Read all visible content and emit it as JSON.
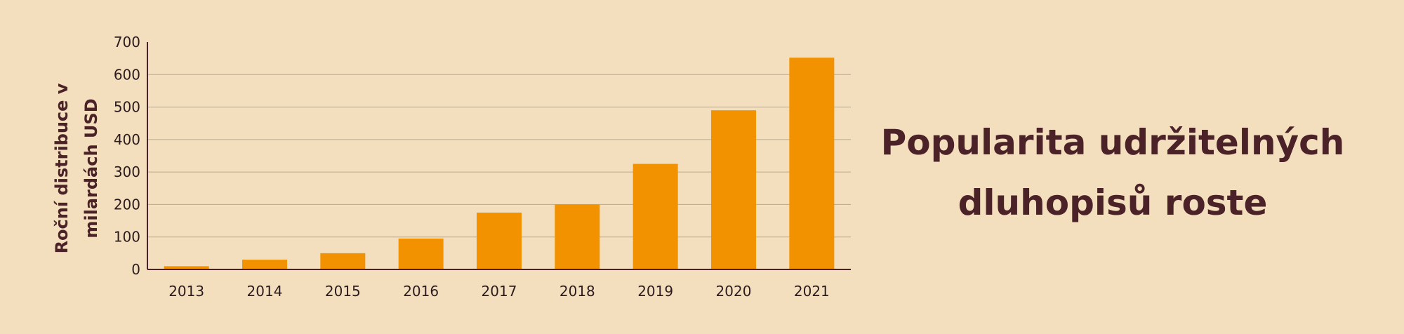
{
  "colors": {
    "background": "#f3dfbd",
    "bar": "#f29200",
    "axis": "#4a2228",
    "grid": "#b9aa90",
    "text": "#4a2228"
  },
  "headline": {
    "line1": "Popularita udržitelných",
    "line2": "dluhopisů roste"
  },
  "chart_data": {
    "type": "bar",
    "categories": [
      "2013",
      "2014",
      "2015",
      "2016",
      "2017",
      "2018",
      "2019",
      "2020",
      "2021"
    ],
    "values": [
      10,
      30,
      50,
      95,
      175,
      200,
      325,
      490,
      652
    ],
    "ylabel_lines": [
      "Roční distribuce v",
      "milardách USD"
    ],
    "xlabel": "",
    "title": "",
    "ylim": [
      0,
      700
    ],
    "yticks": [
      "0",
      "100",
      "200",
      "300",
      "400",
      "500",
      "600",
      "700"
    ],
    "ytick_values": [
      0,
      100,
      200,
      300,
      400,
      500,
      600,
      700
    ],
    "grid": true,
    "legend": "none"
  }
}
